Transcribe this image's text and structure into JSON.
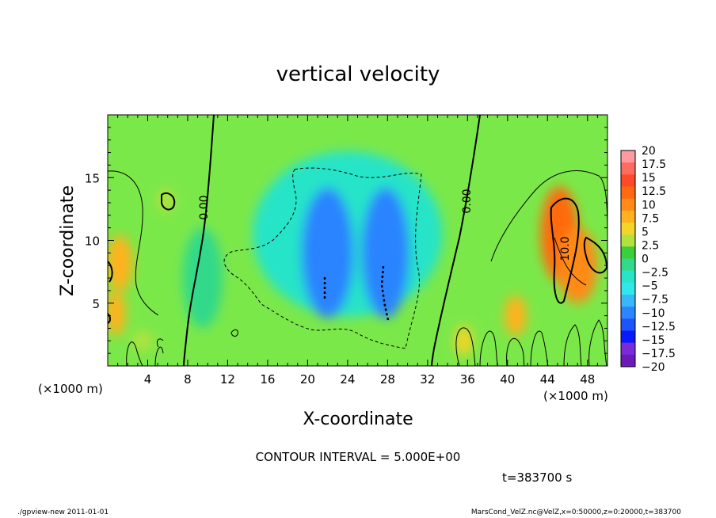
{
  "chart_data": {
    "type": "heatmap",
    "title": "vertical velocity",
    "xlabel": "X-coordinate",
    "ylabel": "Z-coordinate",
    "x_unit_left": "(×1000 m)",
    "x_unit_right": "(×1000 m)",
    "xlim": [
      0,
      50
    ],
    "ylim": [
      0,
      20
    ],
    "xticks": [
      "4",
      "8",
      "12",
      "16",
      "20",
      "24",
      "28",
      "32",
      "36",
      "40",
      "44",
      "48"
    ],
    "xtick_values": [
      4,
      8,
      12,
      16,
      20,
      24,
      28,
      32,
      36,
      40,
      44,
      48
    ],
    "yticks": [
      "5",
      "10",
      "15"
    ],
    "ytick_values": [
      5,
      10,
      15
    ],
    "colorbar": {
      "labels": [
        "20",
        "17.5",
        "15",
        "12.5",
        "10",
        "7.5",
        "5",
        "2.5",
        "0",
        "−2.5",
        "−5",
        "−7.5",
        "−10",
        "−12.5",
        "−15",
        "−17.5",
        "−20"
      ],
      "values": [
        20,
        17.5,
        15,
        12.5,
        10,
        7.5,
        5,
        2.5,
        0,
        -2.5,
        -5,
        -7.5,
        -10,
        -12.5,
        -15,
        -17.5,
        -20
      ],
      "colors": [
        "#ff9aa0",
        "#ff6b5e",
        "#ff4a2a",
        "#ff6a10",
        "#ff8a18",
        "#ffb21e",
        "#f4d428",
        "#b2e23c",
        "#3ccf3a",
        "#32d98a",
        "#28e4c8",
        "#30e8ec",
        "#38b8f8",
        "#2c84ff",
        "#1e54ff",
        "#0a1aff",
        "#7a2ad8",
        "#6a1ab8"
      ],
      "background_color": "#7be84a"
    },
    "contour_interval_text": "CONTOUR INTERVAL = 5.000E+00",
    "contour_labels": [
      "0.00",
      "0.00",
      "10.0"
    ],
    "blobs": [
      {
        "x": 24.0,
        "z": 10.5,
        "rx": 9.5,
        "rz": 6.6,
        "value": -4.0
      },
      {
        "x": 22.0,
        "z": 9.0,
        "rx": 2.6,
        "rz": 5.2,
        "value": -9.0
      },
      {
        "x": 27.8,
        "z": 9.0,
        "rx": 2.4,
        "rz": 5.2,
        "value": -9.0
      },
      {
        "x": 45.2,
        "z": 10.5,
        "rx": 1.9,
        "rz": 3.8,
        "value": 11.5
      },
      {
        "x": 47.0,
        "z": 8.0,
        "rx": 2.0,
        "rz": 3.0,
        "value": 9.0
      },
      {
        "x": 40.8,
        "z": 4.0,
        "rx": 1.1,
        "rz": 1.6,
        "value": 7.0
      },
      {
        "x": 35.6,
        "z": 2.0,
        "rx": 0.9,
        "rz": 1.2,
        "value": 6.0
      },
      {
        "x": 1.2,
        "z": 8.2,
        "rx": 1.3,
        "rz": 2.2,
        "value": 8.0
      },
      {
        "x": 0.8,
        "z": 4.2,
        "rx": 1.0,
        "rz": 1.8,
        "value": 7.0
      },
      {
        "x": 3.5,
        "z": 2.0,
        "rx": 1.0,
        "rz": 0.8,
        "value": 4.0
      },
      {
        "x": 5.8,
        "z": 13.2,
        "rx": 0.9,
        "rz": 0.9,
        "value": 3.5
      },
      {
        "x": 9.5,
        "z": 7.0,
        "rx": 2.0,
        "rz": 4.0,
        "value": -1.5
      }
    ]
  },
  "time_label": "t=383700 s",
  "footer": {
    "left": "./gpview-new  2011-01-01",
    "right": "MarsCond_VelZ.nc@VelZ,x=0:50000,z=0:20000,t=383700"
  }
}
